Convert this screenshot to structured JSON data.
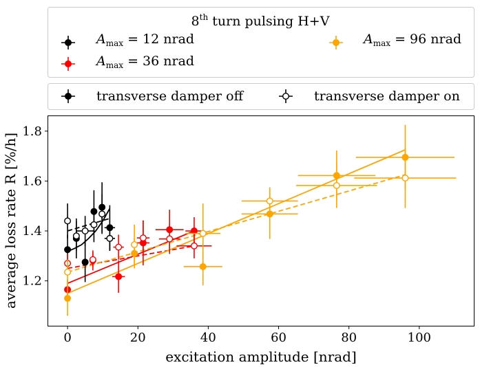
{
  "chart_data": {
    "type": "scatter",
    "title": "",
    "xlabel": "excitation amplitude [nrad]",
    "ylabel": "average loss rate R [%/h]",
    "xlim": [
      -5.5,
      115.5
    ],
    "ylim": [
      1.02,
      1.86
    ],
    "xticks": [
      0,
      20,
      40,
      60,
      80,
      100
    ],
    "yticks": [
      1.2,
      1.4,
      1.6,
      1.8
    ],
    "grid": false,
    "legend_top": {
      "title_sup": "th",
      "title_rest": " turn pulsing H+V",
      "title_num": "8",
      "entries": [
        {
          "color": "#000000",
          "prefix": "A",
          "sub": "max",
          "text": " = 12 nrad"
        },
        {
          "color": "#ff0000",
          "prefix": "A",
          "sub": "max",
          "text": " = 36 nrad"
        },
        {
          "color": "#ffa500",
          "prefix": "A",
          "sub": "max",
          "text": " = 96 nrad"
        }
      ]
    },
    "legend_mid": [
      {
        "label": "transverse damper off",
        "filled": true
      },
      {
        "label": "transverse damper on",
        "filled": false
      }
    ],
    "series": [
      {
        "color": "#000000",
        "filled": true,
        "points": [
          {
            "x": 0.0,
            "y": 1.325,
            "xerr": 0.0,
            "yerr": 0.06
          },
          {
            "x": 2.5,
            "y": 1.37,
            "xerr": 0.0,
            "yerr": 0.08
          },
          {
            "x": 5.0,
            "y": 1.275,
            "xerr": 0.0,
            "yerr": 0.08
          },
          {
            "x": 7.5,
            "y": 1.478,
            "xerr": 0.0,
            "yerr": 0.085
          },
          {
            "x": 9.8,
            "y": 1.495,
            "xerr": 0.0,
            "yerr": 0.1
          },
          {
            "x": 12.0,
            "y": 1.413,
            "xerr": 1.5,
            "yerr": 0.09
          }
        ],
        "fit": {
          "kind": "curve",
          "x": [
            0,
            2,
            4,
            6,
            8,
            10,
            12
          ],
          "y": [
            1.318,
            1.33,
            1.345,
            1.37,
            1.4,
            1.44,
            1.49
          ]
        }
      },
      {
        "color": "#000000",
        "filled": false,
        "points": [
          {
            "x": 0.0,
            "y": 1.44,
            "xerr": 0.0,
            "yerr": 0.07
          },
          {
            "x": 2.5,
            "y": 1.38,
            "xerr": 0.0,
            "yerr": 0.06
          },
          {
            "x": 5.0,
            "y": 1.4,
            "xerr": 2.5,
            "yerr": 0.06
          },
          {
            "x": 7.5,
            "y": 1.425,
            "xerr": 0.0,
            "yerr": 0.07
          },
          {
            "x": 9.8,
            "y": 1.468,
            "xerr": 0.0,
            "yerr": 0.08
          },
          {
            "x": 12.0,
            "y": 1.37,
            "xerr": 1.5,
            "yerr": 0.05
          }
        ],
        "fit": {
          "kind": "dashed",
          "x": [
            0,
            12
          ],
          "y": [
            1.4,
            1.45
          ]
        }
      },
      {
        "color": "#ff0000",
        "filled": true,
        "points": [
          {
            "x": 0.0,
            "y": 1.165,
            "xerr": 0.0,
            "yerr": 0.04
          },
          {
            "x": 7.2,
            "y": 1.282,
            "xerr": 0.0,
            "yerr": 0.04
          },
          {
            "x": 14.5,
            "y": 1.217,
            "xerr": 1.8,
            "yerr": 0.065
          },
          {
            "x": 21.5,
            "y": 1.352,
            "xerr": 1.8,
            "yerr": 0.09
          },
          {
            "x": 29.0,
            "y": 1.405,
            "xerr": 4.0,
            "yerr": 0.08
          },
          {
            "x": 36.0,
            "y": 1.4,
            "xerr": 2.5,
            "yerr": 0.055
          }
        ],
        "fit": {
          "kind": "solid",
          "x": [
            0,
            36
          ],
          "y": [
            1.19,
            1.4
          ]
        }
      },
      {
        "color": "#ff0000",
        "filled": false,
        "points": [
          {
            "x": 0.0,
            "y": 1.27,
            "xerr": 0.0,
            "yerr": 0.04
          },
          {
            "x": 7.2,
            "y": 1.285,
            "xerr": 0.0,
            "yerr": 0.03
          },
          {
            "x": 14.5,
            "y": 1.335,
            "xerr": 1.5,
            "yerr": 0.05
          },
          {
            "x": 21.5,
            "y": 1.372,
            "xerr": 1.8,
            "yerr": 0.07
          },
          {
            "x": 29.0,
            "y": 1.368,
            "xerr": 3.0,
            "yerr": 0.06
          },
          {
            "x": 36.0,
            "y": 1.34,
            "xerr": 5.0,
            "yerr": 0.05
          }
        ],
        "fit": {
          "kind": "dashed",
          "x": [
            0,
            36
          ],
          "y": [
            1.25,
            1.34
          ]
        }
      },
      {
        "color": "#ffa500",
        "filled": true,
        "points": [
          {
            "x": 0.0,
            "y": 1.13,
            "xerr": 0.0,
            "yerr": 0.07
          },
          {
            "x": 19.0,
            "y": 1.31,
            "xerr": 0.0,
            "yerr": 0.06
          },
          {
            "x": 38.5,
            "y": 1.257,
            "xerr": 5.5,
            "yerr": 0.075
          },
          {
            "x": 57.5,
            "y": 1.468,
            "xerr": 8.0,
            "yerr": 0.1
          },
          {
            "x": 76.5,
            "y": 1.622,
            "xerr": 11.0,
            "yerr": 0.1
          },
          {
            "x": 96.0,
            "y": 1.695,
            "xerr": 14.0,
            "yerr": 0.13
          }
        ],
        "fit": {
          "kind": "solid",
          "x": [
            0,
            96
          ],
          "y": [
            1.15,
            1.725
          ]
        }
      },
      {
        "color": "#ffa500",
        "filled": false,
        "points": [
          {
            "x": 0.0,
            "y": 1.235,
            "xerr": 0.0,
            "yerr": 0.05
          },
          {
            "x": 19.0,
            "y": 1.345,
            "xerr": 1.0,
            "yerr": 0.08
          },
          {
            "x": 38.5,
            "y": 1.39,
            "xerr": 5.0,
            "yerr": 0.12
          },
          {
            "x": 57.5,
            "y": 1.52,
            "xerr": 8.0,
            "yerr": 0.055
          },
          {
            "x": 76.5,
            "y": 1.582,
            "xerr": 11.5,
            "yerr": 0.09
          },
          {
            "x": 96.0,
            "y": 1.612,
            "xerr": 14.5,
            "yerr": 0.12
          }
        ],
        "fit": {
          "kind": "dashed",
          "x": [
            0,
            96
          ],
          "y": [
            1.235,
            1.625
          ]
        }
      }
    ]
  }
}
